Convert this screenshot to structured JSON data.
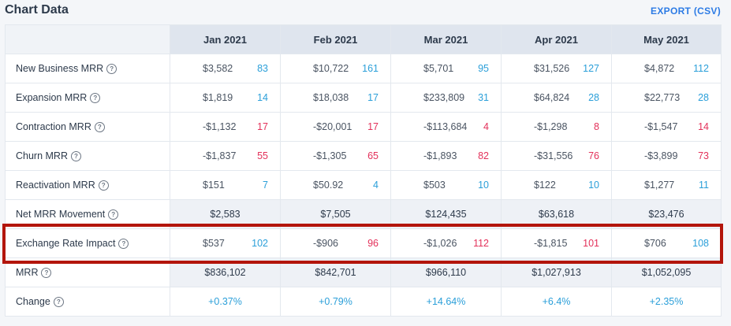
{
  "header": {
    "title": "Chart Data",
    "export_label": "EXPORT (CSV)"
  },
  "columns": [
    "Jan 2021",
    "Feb 2021",
    "Mar 2021",
    "Apr 2021",
    "May 2021"
  ],
  "rows": [
    {
      "label": "New Business MRR",
      "cells": [
        {
          "value": "$3,582",
          "count": "83"
        },
        {
          "value": "$10,722",
          "count": "161"
        },
        {
          "value": "$5,701",
          "count": "95"
        },
        {
          "value": "$31,526",
          "count": "127"
        },
        {
          "value": "$4,872",
          "count": "112"
        }
      ]
    },
    {
      "label": "Expansion MRR",
      "cells": [
        {
          "value": "$1,819",
          "count": "14"
        },
        {
          "value": "$18,038",
          "count": "17"
        },
        {
          "value": "$233,809",
          "count": "31"
        },
        {
          "value": "$64,824",
          "count": "28"
        },
        {
          "value": "$22,773",
          "count": "28"
        }
      ]
    },
    {
      "label": "Contraction MRR",
      "cells": [
        {
          "value": "-$1,132",
          "count": "17"
        },
        {
          "value": "-$20,001",
          "count": "17"
        },
        {
          "value": "-$113,684",
          "count": "4"
        },
        {
          "value": "-$1,298",
          "count": "8"
        },
        {
          "value": "-$1,547",
          "count": "14"
        }
      ]
    },
    {
      "label": "Churn MRR",
      "cells": [
        {
          "value": "-$1,837",
          "count": "55"
        },
        {
          "value": "-$1,305",
          "count": "65"
        },
        {
          "value": "-$1,893",
          "count": "82"
        },
        {
          "value": "-$31,556",
          "count": "76"
        },
        {
          "value": "-$3,899",
          "count": "73"
        }
      ]
    },
    {
      "label": "Reactivation MRR",
      "cells": [
        {
          "value": "$151",
          "count": "7"
        },
        {
          "value": "$50.92",
          "count": "4"
        },
        {
          "value": "$503",
          "count": "10"
        },
        {
          "value": "$122",
          "count": "10"
        },
        {
          "value": "$1,277",
          "count": "11"
        }
      ]
    },
    {
      "label": "Net MRR Movement",
      "totals": [
        "$2,583",
        "$7,505",
        "$124,435",
        "$63,618",
        "$23,476"
      ]
    },
    {
      "label": "Exchange Rate Impact",
      "cells": [
        {
          "value": "$537",
          "count": "102"
        },
        {
          "value": "-$906",
          "count": "96"
        },
        {
          "value": "-$1,026",
          "count": "112"
        },
        {
          "value": "-$1,815",
          "count": "101"
        },
        {
          "value": "$706",
          "count": "108"
        }
      ]
    },
    {
      "label": "MRR",
      "totals": [
        "$836,102",
        "$842,701",
        "$966,110",
        "$1,027,913",
        "$1,052,095"
      ]
    },
    {
      "label": "Change",
      "totals": [
        "+0.37%",
        "+0.79%",
        "+14.64%",
        "+6.4%",
        "+2.35%"
      ]
    }
  ],
  "colors": {
    "positive": "#2b9fd9",
    "negative": "#e3315a",
    "highlight": "#b3150b",
    "link": "#2c7be5"
  },
  "icons": {
    "help": "question-circle-icon"
  }
}
